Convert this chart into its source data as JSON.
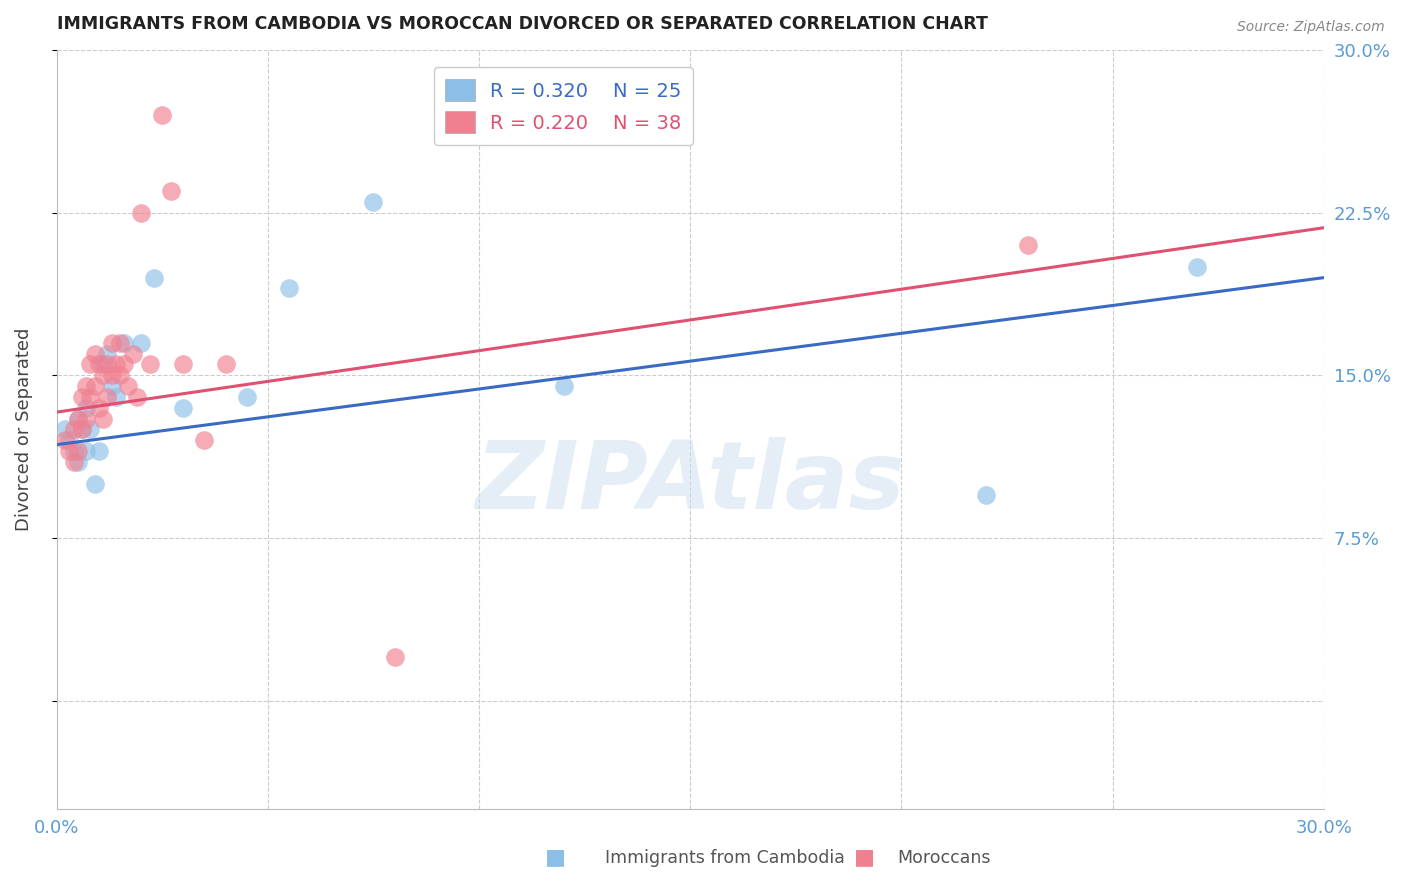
{
  "title": "IMMIGRANTS FROM CAMBODIA VS MOROCCAN DIVORCED OR SEPARATED CORRELATION CHART",
  "source": "Source: ZipAtlas.com",
  "ylabel": "Divorced or Separated",
  "legend_cambodia_r": "R = 0.320",
  "legend_cambodia_n": "N = 25",
  "legend_moroccan_r": "R = 0.220",
  "legend_moroccan_n": "N = 38",
  "watermark": "ZIPAtlas",
  "xmin": 0.0,
  "xmax": 0.3,
  "ymin": -0.05,
  "ymax": 0.3,
  "color_cambodia": "#8BBFE8",
  "color_moroccan": "#F08090",
  "color_trendline_cambodia": "#3A6BC4",
  "color_trendline_moroccan": "#E05070",
  "color_axis_labels": "#5B9BD5",
  "color_title": "#222222",
  "color_grid": "#CCCCCC",
  "scatter_cambodia_x": [
    0.002,
    0.003,
    0.004,
    0.005,
    0.005,
    0.006,
    0.007,
    0.007,
    0.008,
    0.009,
    0.01,
    0.011,
    0.012,
    0.013,
    0.014,
    0.016,
    0.02,
    0.023,
    0.03,
    0.045,
    0.055,
    0.075,
    0.12,
    0.22,
    0.27
  ],
  "scatter_cambodia_y": [
    0.125,
    0.12,
    0.115,
    0.13,
    0.11,
    0.125,
    0.135,
    0.115,
    0.125,
    0.1,
    0.115,
    0.155,
    0.16,
    0.145,
    0.14,
    0.165,
    0.165,
    0.195,
    0.135,
    0.14,
    0.19,
    0.23,
    0.145,
    0.095,
    0.2
  ],
  "scatter_moroccan_x": [
    0.002,
    0.003,
    0.004,
    0.004,
    0.005,
    0.005,
    0.006,
    0.006,
    0.007,
    0.007,
    0.008,
    0.008,
    0.009,
    0.009,
    0.01,
    0.01,
    0.011,
    0.011,
    0.012,
    0.012,
    0.013,
    0.013,
    0.014,
    0.015,
    0.015,
    0.016,
    0.017,
    0.018,
    0.019,
    0.02,
    0.022,
    0.025,
    0.027,
    0.03,
    0.035,
    0.04,
    0.08,
    0.23
  ],
  "scatter_moroccan_y": [
    0.12,
    0.115,
    0.125,
    0.11,
    0.13,
    0.115,
    0.14,
    0.125,
    0.145,
    0.13,
    0.155,
    0.14,
    0.16,
    0.145,
    0.155,
    0.135,
    0.15,
    0.13,
    0.155,
    0.14,
    0.165,
    0.15,
    0.155,
    0.165,
    0.15,
    0.155,
    0.145,
    0.16,
    0.14,
    0.225,
    0.155,
    0.27,
    0.235,
    0.155,
    0.12,
    0.155,
    0.02,
    0.21
  ],
  "trendline_cam_start_y": 0.118,
  "trendline_cam_end_y": 0.195,
  "trendline_mor_start_y": 0.133,
  "trendline_mor_end_y": 0.218
}
